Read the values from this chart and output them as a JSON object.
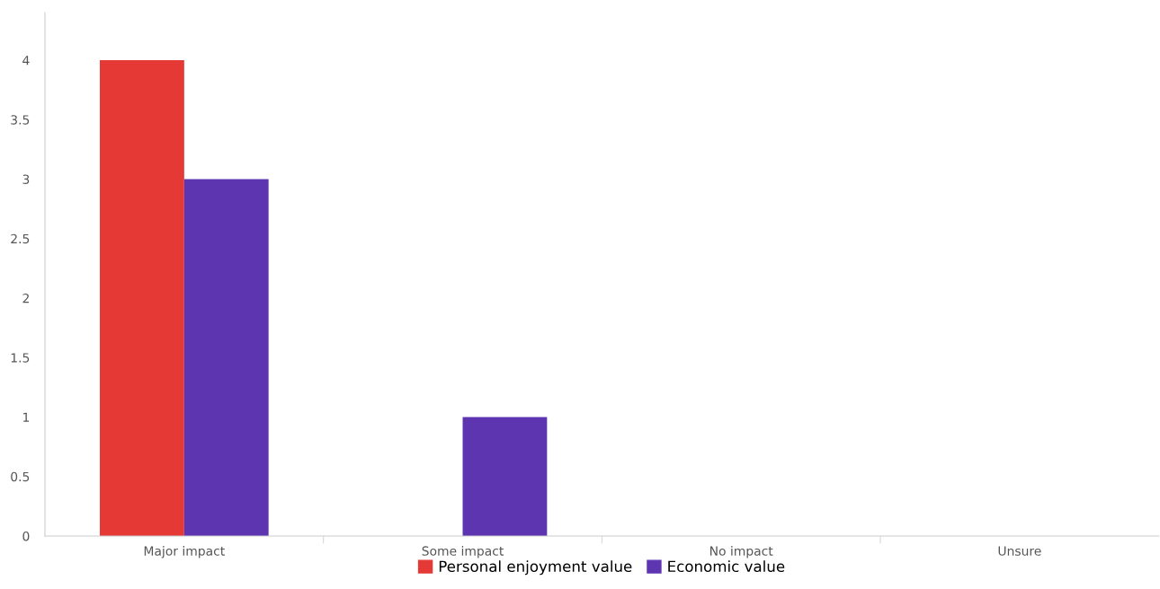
{
  "chart_data": {
    "type": "bar",
    "categories": [
      "Major impact",
      "Some impact",
      "No impact",
      "Unsure"
    ],
    "series": [
      {
        "name": "Personal enjoyment value",
        "color": "#e53935",
        "values": [
          4,
          0,
          0,
          0
        ]
      },
      {
        "name": "Economic value",
        "color": "#5e35b1",
        "values": [
          3,
          1,
          0,
          0
        ]
      }
    ],
    "ylim": [
      0,
      4.4
    ],
    "yticks": [
      0,
      0.5,
      1,
      1.5,
      2,
      2.5,
      3,
      3.5,
      4
    ],
    "grid": false,
    "legend": "bottom"
  }
}
